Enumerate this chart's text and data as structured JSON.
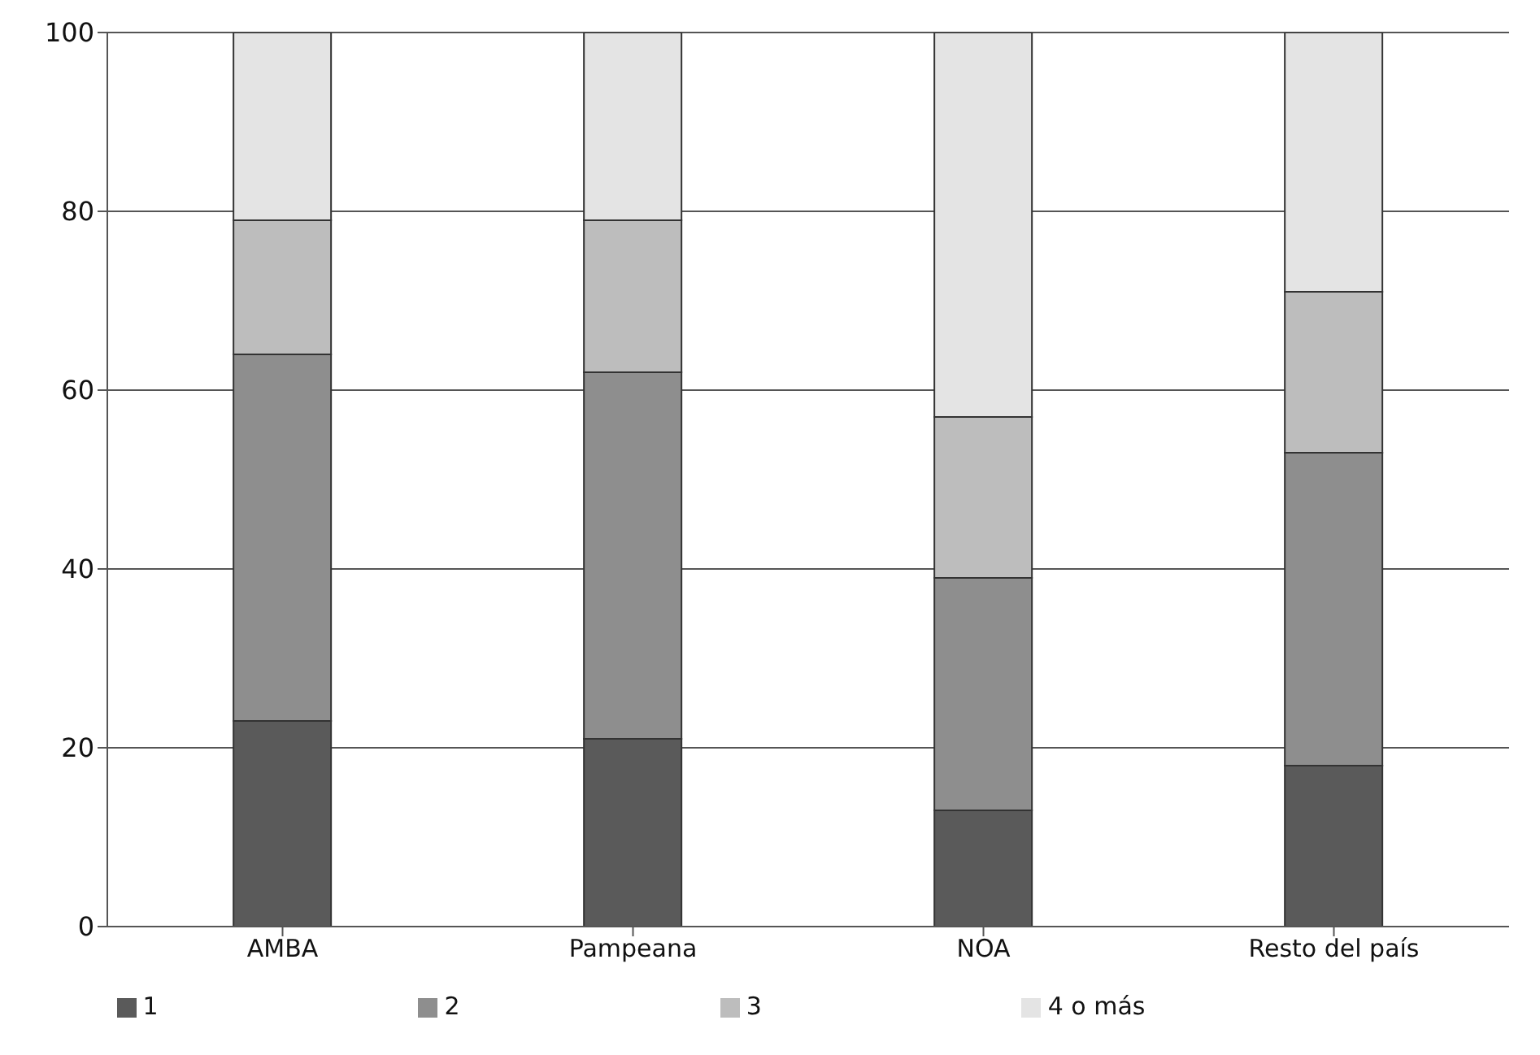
{
  "chart_data": {
    "type": "bar",
    "stacked": true,
    "categories": [
      "AMBA",
      "Pampeana",
      "NOA",
      "Resto del país"
    ],
    "series": [
      {
        "name": "1",
        "color": "#5a5a5a",
        "values": [
          23,
          21,
          13,
          18
        ]
      },
      {
        "name": "2",
        "color": "#8e8e8e",
        "values": [
          41,
          41,
          26,
          35
        ]
      },
      {
        "name": "3",
        "color": "#bdbdbd",
        "values": [
          15,
          17,
          18,
          18
        ]
      },
      {
        "name": "4 o más",
        "color": "#e4e4e4",
        "values": [
          21,
          21,
          43,
          29
        ]
      }
    ],
    "ylim": [
      0,
      100
    ],
    "yticks": [
      0,
      20,
      40,
      60,
      80,
      100
    ],
    "grid": "y",
    "legend": "bottom"
  }
}
